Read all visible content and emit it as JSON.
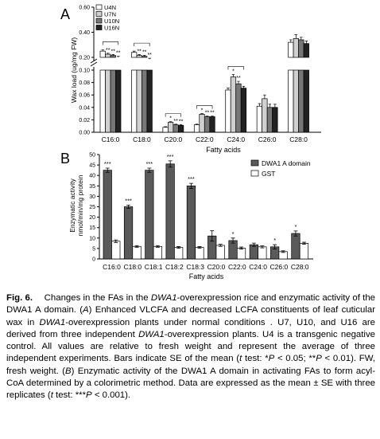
{
  "figure_label": "Fig. 6.",
  "caption_parts": [
    {
      "t": "Changes in the FAs in the ",
      "i": false
    },
    {
      "t": "DWA1",
      "i": true
    },
    {
      "t": "-overexpression rice and enzymatic activity of the DWA1 A domain. (",
      "i": false
    },
    {
      "t": "A",
      "i": true
    },
    {
      "t": ") Enhanced VLCFA and decreased LCFA constituents of leaf cuticular wax in ",
      "i": false
    },
    {
      "t": "DWA1",
      "i": true
    },
    {
      "t": "-overexpression plants under normal conditions . U7, U10, and U16 are derived from three independent ",
      "i": false
    },
    {
      "t": "DWA1",
      "i": true
    },
    {
      "t": "-overexpression plants. U4 is a transgenic negative control. All values are relative to fresh weight and represent the average of three independent experiments. Bars indicate SE of the mean (",
      "i": false
    },
    {
      "t": "t",
      "i": true
    },
    {
      "t": " test: *",
      "i": false
    },
    {
      "t": "P",
      "i": true
    },
    {
      "t": " < 0.05; **",
      "i": false
    },
    {
      "t": "P",
      "i": true
    },
    {
      "t": " < 0.01). FW, fresh weight. (",
      "i": false
    },
    {
      "t": "B",
      "i": true
    },
    {
      "t": ") Enzymatic activity of the DWA1 A domain in activating FAs to form acyl-CoA determined by a colorimetric method. Data are expressed as the mean ± SE with three replicates (",
      "i": false
    },
    {
      "t": "t",
      "i": true
    },
    {
      "t": " test: ***",
      "i": false
    },
    {
      "t": "P",
      "i": true
    },
    {
      "t": " < 0.001).",
      "i": false
    }
  ],
  "chart_data": [
    {
      "panel": "A",
      "type": "bar",
      "ylabel": "Wax load (ug/mg FW)",
      "xlabel": "Fatty acids",
      "axis_break": true,
      "lower_ticks": [
        "0.00",
        "0.02",
        "0.04",
        "0.06",
        "0.08",
        "0.10"
      ],
      "upper_ticks": [
        "0.20",
        "0.40",
        "0.60"
      ],
      "lower_range": [
        0,
        0.1
      ],
      "upper_range": [
        0.2,
        0.6
      ],
      "categories": [
        "C16:0",
        "C18:0",
        "C20:0",
        "C22:0",
        "C24:0",
        "C26:0",
        "C28:0"
      ],
      "series": [
        {
          "name": "U4N",
          "color": "#ffffff",
          "values": [
            0.25,
            0.24,
            0.008,
            0.012,
            0.068,
            0.042,
            0.32
          ],
          "errors": [
            0.01,
            0.01,
            0.001,
            0.001,
            0.003,
            0.004,
            0.02
          ]
        },
        {
          "name": "U7N",
          "color": "#d0d0d0",
          "values": [
            0.225,
            0.215,
            0.016,
            0.029,
            0.089,
            0.054,
            0.35
          ],
          "errors": [
            0.008,
            0.008,
            0.001,
            0.001,
            0.004,
            0.006,
            0.03
          ]
        },
        {
          "name": "U10N",
          "color": "#777777",
          "values": [
            0.215,
            0.208,
            0.012,
            0.025,
            0.078,
            0.04,
            0.34
          ],
          "errors": [
            0.008,
            0.008,
            0.001,
            0.001,
            0.004,
            0.005,
            0.02
          ]
        },
        {
          "name": "U16N",
          "color": "#222222",
          "values": [
            0.2,
            0.185,
            0.011,
            0.025,
            0.071,
            0.04,
            0.31
          ],
          "errors": [
            0.008,
            0.008,
            0.001,
            0.001,
            0.003,
            0.005,
            0.02
          ]
        }
      ],
      "significance": [
        [
          "",
          "**",
          "**",
          "**"
        ],
        [
          "",
          "**",
          "**",
          "**"
        ],
        [
          "",
          "*",
          "**",
          "**"
        ],
        [
          "",
          "*",
          "**",
          "**"
        ],
        [
          "",
          "*",
          "**",
          ""
        ],
        [
          "",
          "",
          "",
          ""
        ],
        [
          "",
          "",
          "",
          ""
        ]
      ]
    },
    {
      "panel": "B",
      "type": "bar",
      "ylabel_lines": [
        "Enzymatic activity",
        "nmol/min/mg protein"
      ],
      "xlabel": "Fatty acids",
      "y_ticks": [
        "0",
        "5",
        "10",
        "15",
        "20",
        "25",
        "30",
        "35",
        "40",
        "45",
        "50"
      ],
      "ylim": [
        0,
        50
      ],
      "categories": [
        "C16:0",
        "C18:0",
        "C18:1",
        "C18:2",
        "C18:3",
        "C20:0",
        "C22:0",
        "C24:0",
        "C26:0",
        "C28:0"
      ],
      "series": [
        {
          "name": "DWA1 A domain",
          "color": "#5a5a5a",
          "values": [
            42.5,
            25,
            42.5,
            45.5,
            35,
            11,
            8.8,
            6.8,
            5.8,
            12.2
          ],
          "errors": [
            1,
            0.8,
            1,
            1.5,
            1.2,
            2.5,
            1.2,
            0.8,
            1,
            1.2
          ]
        },
        {
          "name": "GST",
          "color": "#ffffff",
          "values": [
            8.5,
            6,
            6,
            5.5,
            5.5,
            6.5,
            5.2,
            5.8,
            3.5,
            7.5
          ],
          "errors": [
            0.6,
            0.4,
            0.4,
            0.4,
            0.4,
            0.5,
            0.5,
            0.5,
            0.4,
            0.5
          ]
        }
      ],
      "significance": [
        "***",
        "***",
        "***",
        "***",
        "***",
        "",
        "*",
        "",
        "*",
        "*"
      ]
    }
  ]
}
